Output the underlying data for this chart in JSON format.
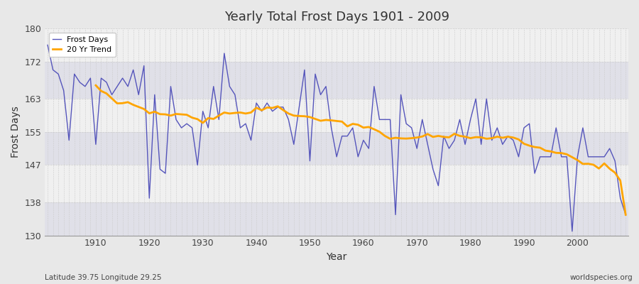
{
  "title": "Yearly Total Frost Days 1901 - 2009",
  "xlabel": "Year",
  "ylabel": "Frost Days",
  "lat_lon_label": "Latitude 39.75 Longitude 29.25",
  "watermark": "worldspecies.org",
  "line_color": "#5555bb",
  "trend_color": "#FFA500",
  "bg_color": "#e8e8e8",
  "plot_bg_color": "#f0f0f0",
  "band_color_a": "#f0f0f0",
  "band_color_b": "#e0e0e8",
  "ylim": [
    130,
    180
  ],
  "yticks": [
    130,
    138,
    147,
    155,
    163,
    172,
    180
  ],
  "years": [
    1901,
    1902,
    1903,
    1904,
    1905,
    1906,
    1907,
    1908,
    1909,
    1910,
    1911,
    1912,
    1913,
    1914,
    1915,
    1916,
    1917,
    1918,
    1919,
    1920,
    1921,
    1922,
    1923,
    1924,
    1925,
    1926,
    1927,
    1928,
    1929,
    1930,
    1931,
    1932,
    1933,
    1934,
    1935,
    1936,
    1937,
    1938,
    1939,
    1940,
    1941,
    1942,
    1943,
    1944,
    1945,
    1946,
    1947,
    1948,
    1949,
    1950,
    1951,
    1952,
    1953,
    1954,
    1955,
    1956,
    1957,
    1958,
    1959,
    1960,
    1961,
    1962,
    1963,
    1964,
    1965,
    1966,
    1967,
    1968,
    1969,
    1970,
    1971,
    1972,
    1973,
    1974,
    1975,
    1976,
    1977,
    1978,
    1979,
    1980,
    1981,
    1982,
    1983,
    1984,
    1985,
    1986,
    1987,
    1988,
    1989,
    1990,
    1991,
    1992,
    1993,
    1994,
    1995,
    1996,
    1997,
    1998,
    1999,
    2000,
    2001,
    2002,
    2003,
    2004,
    2005,
    2006,
    2007,
    2008,
    2009
  ],
  "frost_days": [
    176,
    170,
    169,
    165,
    153,
    169,
    167,
    166,
    168,
    152,
    168,
    167,
    164,
    166,
    168,
    166,
    170,
    164,
    171,
    139,
    164,
    146,
    145,
    166,
    158,
    156,
    157,
    156,
    147,
    160,
    156,
    166,
    158,
    174,
    166,
    164,
    156,
    157,
    153,
    162,
    160,
    162,
    160,
    161,
    161,
    158,
    152,
    161,
    170,
    148,
    169,
    164,
    166,
    156,
    149,
    154,
    154,
    156,
    149,
    153,
    151,
    166,
    158,
    158,
    158,
    135,
    164,
    157,
    156,
    151,
    158,
    152,
    146,
    142,
    154,
    151,
    153,
    158,
    152,
    158,
    163,
    152,
    163,
    153,
    156,
    152,
    154,
    153,
    149,
    156,
    157,
    145,
    149,
    149,
    149,
    156,
    149,
    149,
    131,
    149,
    156,
    149,
    149,
    149,
    149,
    151,
    148,
    139,
    135
  ]
}
